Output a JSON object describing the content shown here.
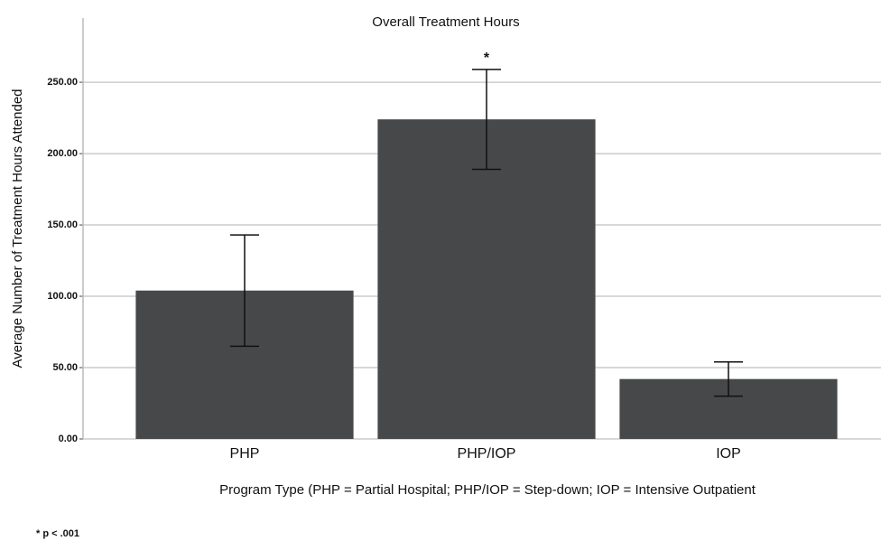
{
  "chart_data": {
    "type": "bar",
    "title": "Overall Treatment Hours",
    "x_label": "Program Type (PHP = Partial Hospital; PHP/IOP = Step-down; IOP = Intensive Outpatient",
    "y_label": "Average Number of Treatment Hours Attended",
    "categories": [
      "PHP",
      "PHP/IOP",
      "IOP"
    ],
    "values": [
      104,
      224,
      42
    ],
    "errors": [
      39,
      35,
      12
    ],
    "color": "#47484a",
    "annotations": [
      null,
      "*",
      null
    ],
    "footnote": "* p < .001",
    "ylim": [
      0,
      295
    ],
    "yticks": [
      {
        "value": 0,
        "label": "0.00"
      },
      {
        "value": 50,
        "label": "50.00"
      },
      {
        "value": 100,
        "label": "100.00"
      },
      {
        "value": 150,
        "label": "150.00"
      },
      {
        "value": 200,
        "label": "200.00"
      },
      {
        "value": 250,
        "label": "250.00"
      }
    ],
    "grid": true
  }
}
